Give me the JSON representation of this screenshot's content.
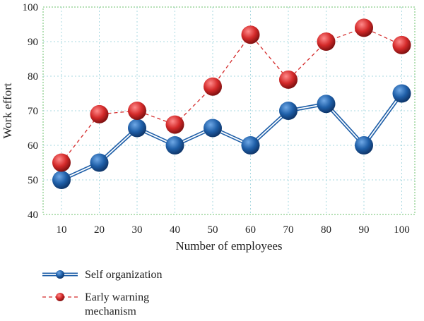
{
  "chart_data": {
    "type": "line",
    "xlabel": "Number of employees",
    "ylabel": "Work effort",
    "x": [
      10,
      20,
      30,
      40,
      50,
      60,
      70,
      80,
      90,
      100
    ],
    "ylim": [
      40,
      100
    ],
    "yticks": [
      40,
      50,
      60,
      70,
      80,
      90,
      100
    ],
    "grid": true,
    "legend_position": "bottom-left",
    "series": [
      {
        "name": "Self organization",
        "values": [
          50,
          55,
          65,
          60,
          65,
          60,
          70,
          72,
          60,
          75
        ],
        "color": "#1f5fa8",
        "line_style": "double-solid"
      },
      {
        "name": "Early warning mechanism",
        "values": [
          55,
          69,
          70,
          66,
          77,
          92,
          79,
          90,
          94,
          89
        ],
        "color": "#d42a2a",
        "line_style": "dashed"
      }
    ],
    "legend_lines": [
      [
        "Self organization"
      ],
      [
        "Early warning",
        "mechanism"
      ]
    ]
  }
}
